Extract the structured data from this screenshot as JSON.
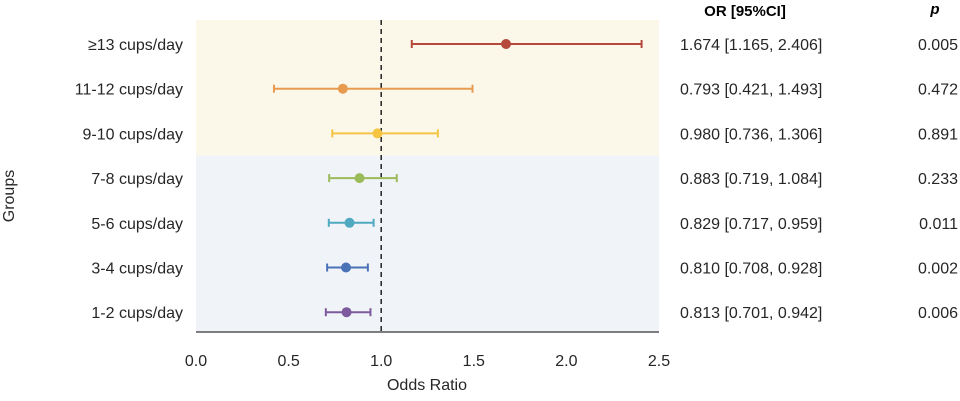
{
  "chart_data": {
    "type": "forest",
    "xlabel": "Odds Ratio",
    "ylabel": "Groups",
    "xlim": [
      0.0,
      2.5
    ],
    "xticks": [
      "0.0",
      "0.5",
      "1.0",
      "1.5",
      "2.0",
      "2.5"
    ],
    "reference_line": 1.0,
    "table_headers": {
      "or": "OR [95%CI]",
      "p": "p"
    },
    "background_bands": [
      {
        "label_range": [
          "≥13 cups/day",
          "9-10 cups/day"
        ],
        "color": "#fbf8ea"
      },
      {
        "label_range": [
          "7-8 cups/day",
          "1-2 cups/day"
        ],
        "color": "#f0f3f8"
      }
    ],
    "rows": [
      {
        "label": "≥13 cups/day",
        "or": 1.674,
        "lower": 1.165,
        "upper": 2.406,
        "or_text": "1.674 [1.165, 2.406]",
        "p": "0.005",
        "color": "#b5493c"
      },
      {
        "label": "11-12 cups/day",
        "or": 0.793,
        "lower": 0.421,
        "upper": 1.493,
        "or_text": "0.793 [0.421, 1.493]",
        "p": "0.472",
        "color": "#e89a4f"
      },
      {
        "label": "9-10 cups/day",
        "or": 0.98,
        "lower": 0.736,
        "upper": 1.306,
        "or_text": "0.980 [0.736, 1.306]",
        "p": "0.891",
        "color": "#f5c443"
      },
      {
        "label": "7-8 cups/day",
        "or": 0.883,
        "lower": 0.719,
        "upper": 1.084,
        "or_text": "0.883 [0.719, 1.084]",
        "p": "0.233",
        "color": "#9bbb5b"
      },
      {
        "label": "5-6 cups/day",
        "or": 0.829,
        "lower": 0.717,
        "upper": 0.959,
        "or_text": "0.829 [0.717, 0.959]",
        "p": "0.011",
        "color": "#4fa9c0"
      },
      {
        "label": "3-4 cups/day",
        "or": 0.81,
        "lower": 0.708,
        "upper": 0.928,
        "or_text": "0.810 [0.708, 0.928]",
        "p": "0.002",
        "color": "#4a72b6"
      },
      {
        "label": "1-2 cups/day",
        "or": 0.813,
        "lower": 0.701,
        "upper": 0.942,
        "or_text": "0.813 [0.701, 0.942]",
        "p": "0.006",
        "color": "#7d5a9e"
      }
    ]
  }
}
